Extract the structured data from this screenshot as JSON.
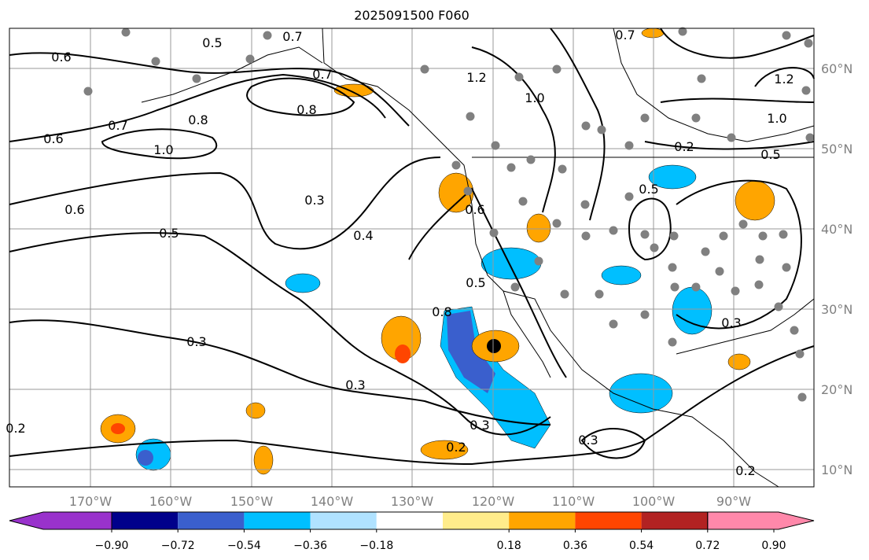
{
  "title": "2025091500 F060",
  "lon_labels": [
    "170°W",
    "160°W",
    "150°W",
    "140°W",
    "130°W",
    "120°W",
    "110°W",
    "100°W",
    "90°W"
  ],
  "lat_labels": [
    "60°N",
    "50°N",
    "40°N",
    "30°N",
    "20°N",
    "10°N"
  ],
  "contour_labels": [
    "0.6",
    "0.5",
    "0.7",
    "0.7",
    "0.8",
    "0.6",
    "0.7",
    "0.8",
    "1.0",
    "0.6",
    "0.5",
    "0.3",
    "0.4",
    "0.3",
    "0.3",
    "0.8",
    "0.5",
    "0.3",
    "0.2",
    "0.2",
    "0.3",
    "0.2",
    "1.2",
    "1.0",
    "0.6",
    "0.5",
    "0.5",
    "0.7",
    "1.2",
    "1.0",
    "0.3",
    "0.2"
  ],
  "colorbar": {
    "ticks": [
      "−0.90",
      "−0.72",
      "−0.54",
      "−0.36",
      "−0.18",
      "0.18",
      "0.36",
      "0.54",
      "0.72",
      "0.90"
    ],
    "colors": [
      "#9932CC",
      "#00008B",
      "#3A5FCD",
      "#00BFFF",
      "#B0E2FF",
      "#FFFFFF",
      "#FFEC8B",
      "#FFA500",
      "#FF4500",
      "#B22222",
      "#FF88AA"
    ]
  }
}
